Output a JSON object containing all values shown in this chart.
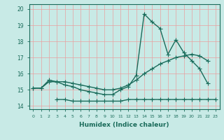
{
  "title": "",
  "xlabel": "Humidex (Indice chaleur)",
  "ylabel": "",
  "background_color": "#c8eae6",
  "grid_color": "#e8a0a0",
  "line_color": "#1a6b5a",
  "x_values": [
    0,
    1,
    2,
    3,
    4,
    5,
    6,
    7,
    8,
    9,
    10,
    11,
    12,
    13,
    14,
    15,
    16,
    17,
    18,
    19,
    20,
    21,
    22,
    23
  ],
  "series1": [
    15.1,
    15.1,
    15.5,
    15.5,
    15.3,
    15.2,
    15.0,
    14.9,
    14.8,
    14.7,
    14.7,
    15.0,
    15.2,
    15.9,
    19.7,
    19.2,
    18.8,
    17.2,
    18.1,
    17.3,
    16.8,
    16.3,
    15.4,
    null
  ],
  "series2": [
    15.1,
    15.1,
    15.6,
    15.5,
    15.5,
    15.4,
    15.3,
    15.2,
    15.1,
    15.0,
    15.0,
    15.1,
    15.3,
    15.6,
    16.0,
    16.3,
    16.6,
    16.8,
    17.0,
    17.1,
    17.2,
    17.1,
    16.8,
    null
  ],
  "series3": [
    null,
    null,
    null,
    14.4,
    14.4,
    14.3,
    14.3,
    14.3,
    14.3,
    14.3,
    14.3,
    14.3,
    14.4,
    14.4,
    14.4,
    14.4,
    14.4,
    14.4,
    14.4,
    14.4,
    14.4,
    14.4,
    14.4,
    14.4
  ],
  "ylim": [
    13.8,
    20.3
  ],
  "xlim": [
    -0.5,
    23.5
  ],
  "yticks": [
    14,
    15,
    16,
    17,
    18,
    19,
    20
  ],
  "xticks": [
    0,
    1,
    2,
    3,
    4,
    5,
    6,
    7,
    8,
    9,
    10,
    11,
    12,
    13,
    14,
    15,
    16,
    17,
    18,
    19,
    20,
    21,
    22,
    23
  ],
  "marker": "+",
  "markersize": 4,
  "linewidth": 1.0
}
